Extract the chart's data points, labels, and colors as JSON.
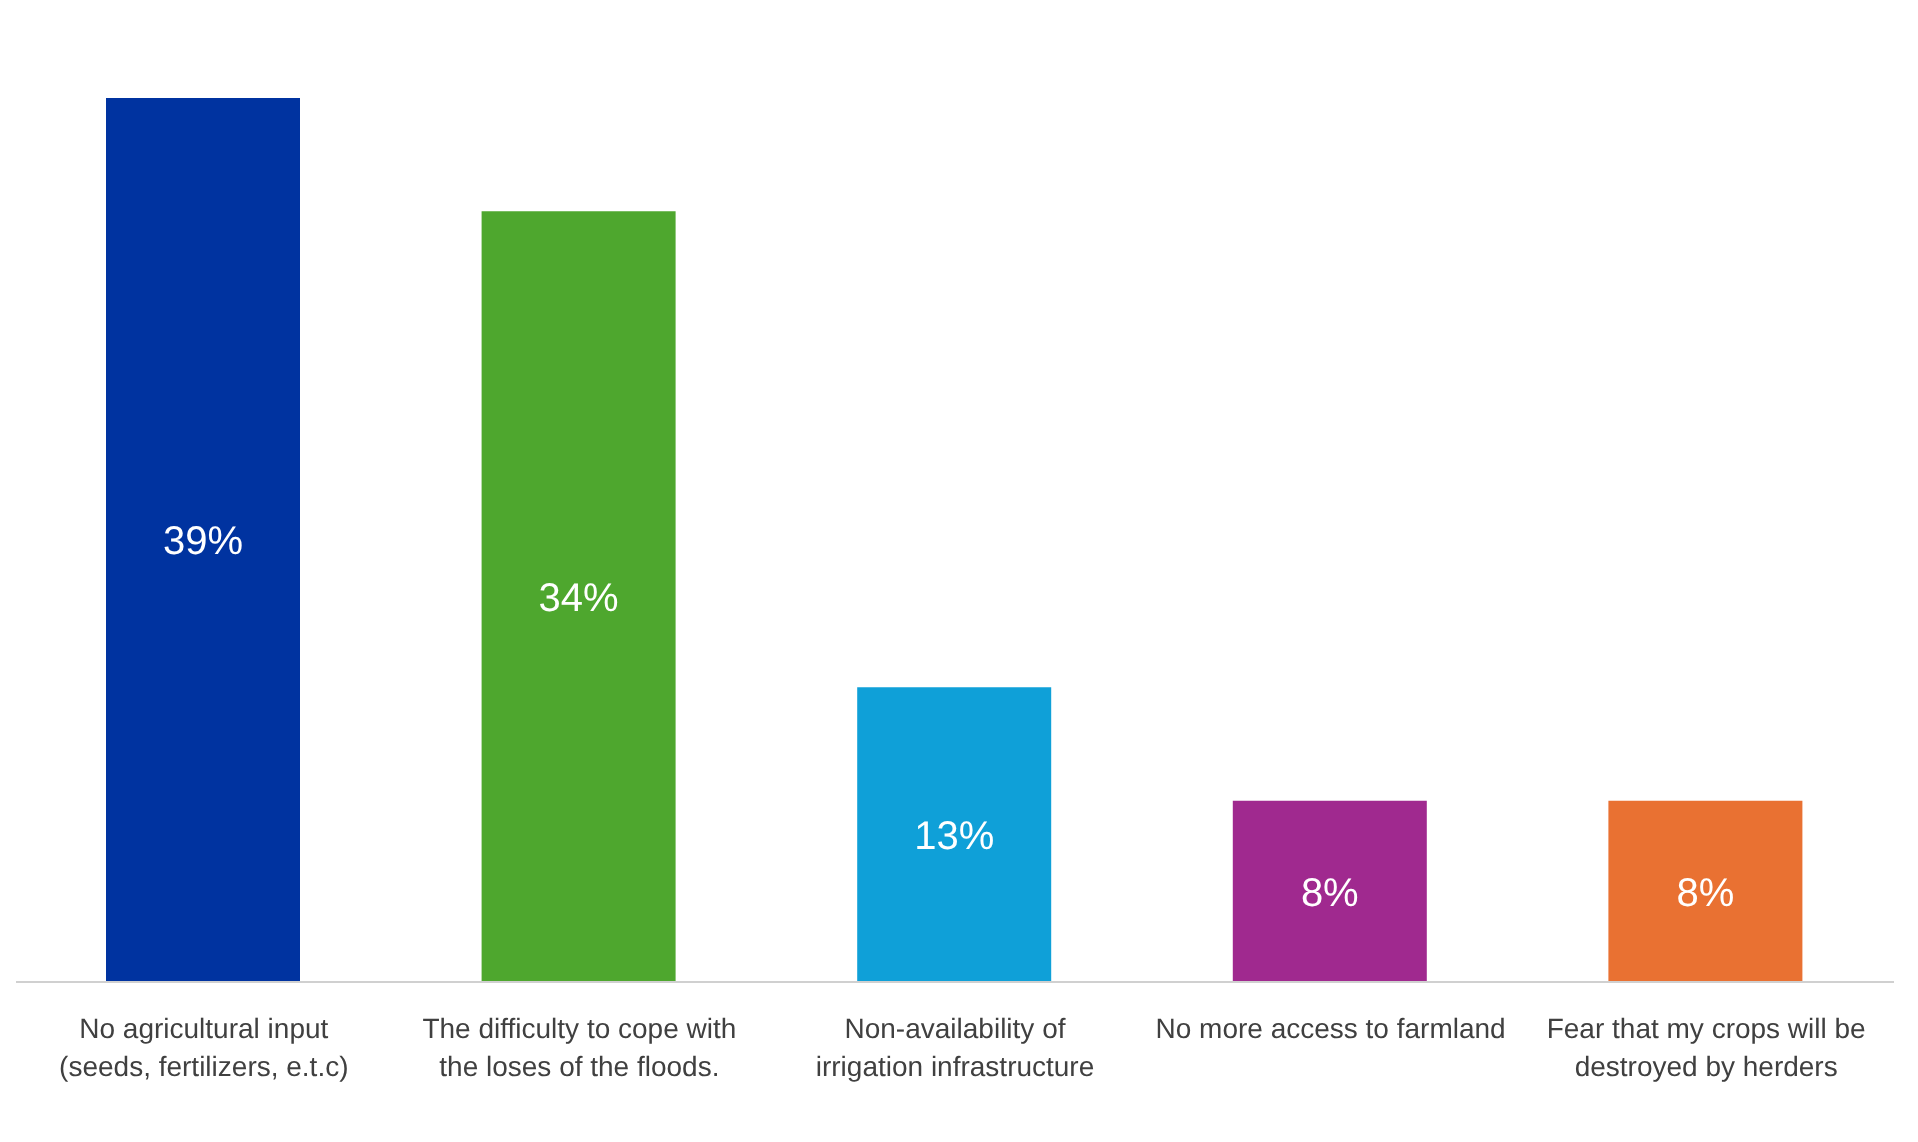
{
  "chart_data": {
    "type": "bar",
    "categories": [
      "No agricultural input (seeds, fertilizers, e.t.c)",
      "The difficulty to cope with the loses of the floods.",
      "Non-availability of irrigation infrastructure",
      "No more access to farmland",
      "Fear that my crops will be destroyed by herders"
    ],
    "values": [
      39,
      34,
      13,
      8,
      8
    ],
    "colors": [
      "#0033a0",
      "#4ea72e",
      "#0fa0d8",
      "#a0298f",
      "#e97132"
    ],
    "value_labels": [
      "39%",
      "34%",
      "13%",
      "8%",
      "8%"
    ]
  }
}
